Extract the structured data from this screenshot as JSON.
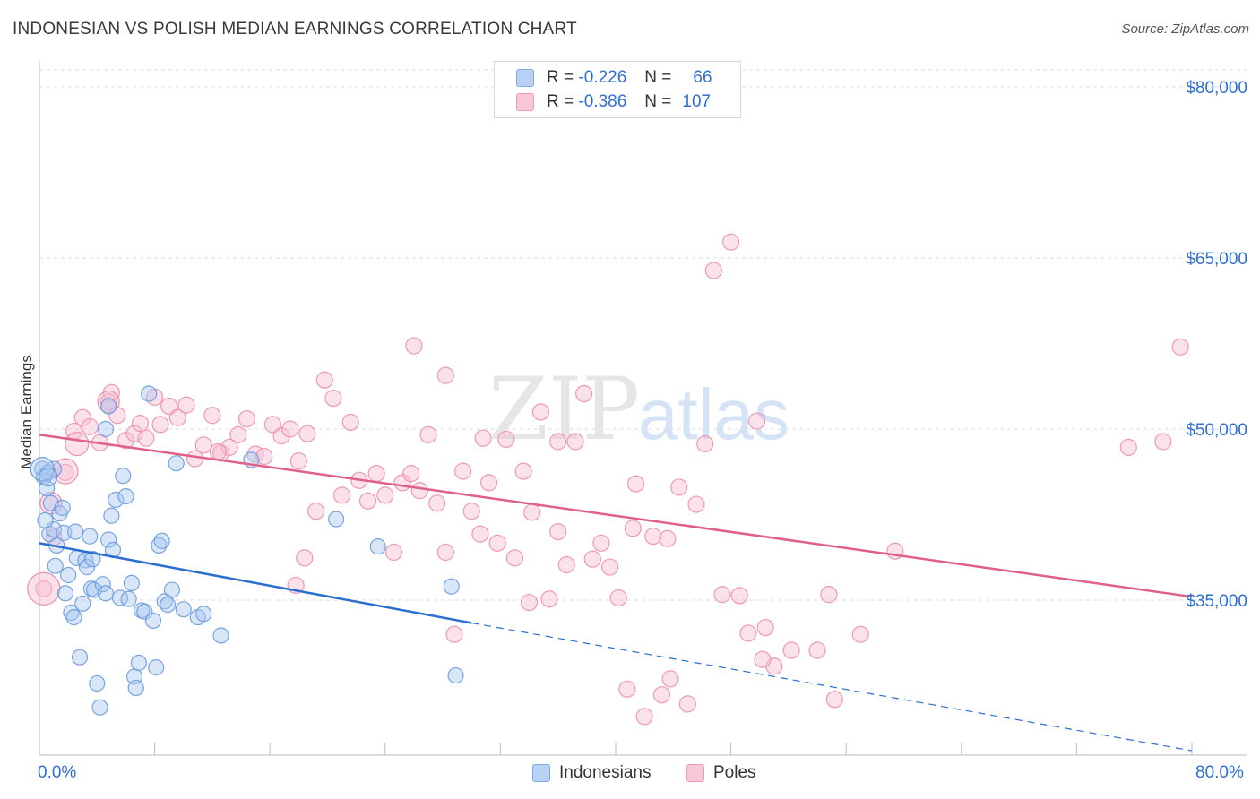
{
  "title": "INDONESIAN VS POLISH MEDIAN EARNINGS CORRELATION CHART",
  "source": "Source: ZipAtlas.com",
  "watermark": {
    "zip": "ZIP",
    "atlas": "atlas"
  },
  "legend": {
    "rows": [
      {
        "r_label": "R =",
        "r_value": "-0.226",
        "n_label": "N =",
        "n_value": "66"
      },
      {
        "r_label": "R =",
        "r_value": "-0.386",
        "n_label": "N =",
        "n_value": "107"
      }
    ]
  },
  "colors": {
    "blue": "#7aaae8",
    "blue_line": "#2a6fd0",
    "pink": "#f09ab8",
    "pink_line": "#e0608a",
    "axis_text": "#2f6fd0",
    "grid": "#d9d9d9"
  },
  "chart_data": {
    "type": "scatter",
    "title": "INDONESIAN VS POLISH MEDIAN EARNINGS CORRELATION CHART",
    "ylabel": "Median Earnings",
    "xlabel": "",
    "xlim": [
      0,
      80
    ],
    "ylim": [
      20000,
      82000
    ],
    "x_tick_labels": {
      "left": "0.0%",
      "right": "80.0%"
    },
    "y_ticks": [
      {
        "value": 80000,
        "label": "$80,000"
      },
      {
        "value": 65000,
        "label": "$65,000"
      },
      {
        "value": 50000,
        "label": "$50,000"
      },
      {
        "value": 35000,
        "label": "$35,000"
      }
    ],
    "series": [
      {
        "name": "Indonesians",
        "color": "#7aaae8",
        "trend": {
          "x0": 0,
          "y0": 40000,
          "x1": 30,
          "y1": 33000,
          "dash_to_x": 80,
          "dash_to_y": 21800
        },
        "points": [
          [
            0.2,
            46500
          ],
          [
            0.3,
            45800
          ],
          [
            0.5,
            44800
          ],
          [
            0.6,
            46200
          ],
          [
            0.7,
            40800
          ],
          [
            0.8,
            43500
          ],
          [
            1.0,
            41200
          ],
          [
            1.1,
            38000
          ],
          [
            1.2,
            39800
          ],
          [
            1.4,
            42600
          ],
          [
            1.6,
            43100
          ],
          [
            1.7,
            40900
          ],
          [
            1.8,
            35600
          ],
          [
            2.0,
            37200
          ],
          [
            2.2,
            33900
          ],
          [
            2.4,
            33500
          ],
          [
            2.5,
            41000
          ],
          [
            2.6,
            38700
          ],
          [
            2.8,
            30000
          ],
          [
            3.0,
            34700
          ],
          [
            3.2,
            38500
          ],
          [
            3.3,
            37900
          ],
          [
            3.5,
            40600
          ],
          [
            3.6,
            36000
          ],
          [
            3.7,
            38600
          ],
          [
            3.8,
            35900
          ],
          [
            4.0,
            27700
          ],
          [
            4.2,
            25600
          ],
          [
            4.4,
            36400
          ],
          [
            4.6,
            35600
          ],
          [
            4.8,
            40300
          ],
          [
            5.0,
            42400
          ],
          [
            5.1,
            39400
          ],
          [
            5.3,
            43800
          ],
          [
            5.6,
            35200
          ],
          [
            5.8,
            45900
          ],
          [
            6.0,
            44100
          ],
          [
            6.2,
            35100
          ],
          [
            6.4,
            36500
          ],
          [
            6.6,
            28300
          ],
          [
            6.7,
            27300
          ],
          [
            6.9,
            29500
          ],
          [
            7.1,
            34100
          ],
          [
            7.3,
            34000
          ],
          [
            7.6,
            53100
          ],
          [
            7.9,
            33200
          ],
          [
            8.1,
            29100
          ],
          [
            8.3,
            39800
          ],
          [
            8.5,
            40200
          ],
          [
            8.7,
            34900
          ],
          [
            8.9,
            34600
          ],
          [
            9.2,
            35900
          ],
          [
            9.5,
            47000
          ],
          [
            10.0,
            34200
          ],
          [
            11.0,
            33500
          ],
          [
            11.4,
            33800
          ],
          [
            12.6,
            31900
          ],
          [
            14.7,
            47300
          ],
          [
            20.6,
            42100
          ],
          [
            23.5,
            39700
          ],
          [
            28.6,
            36200
          ],
          [
            28.9,
            28400
          ],
          [
            4.8,
            52000
          ],
          [
            4.6,
            50000
          ],
          [
            1.0,
            46500
          ],
          [
            0.4,
            42000
          ]
        ]
      },
      {
        "name": "Poles",
        "color": "#f09ab8",
        "trend": {
          "x0": 0,
          "y0": 49500,
          "x1": 80,
          "y1": 35300
        },
        "points": [
          [
            0.3,
            36000
          ],
          [
            1.0,
            40500
          ],
          [
            1.8,
            46200
          ],
          [
            2.4,
            49800
          ],
          [
            3.0,
            51000
          ],
          [
            3.5,
            50200
          ],
          [
            4.2,
            48800
          ],
          [
            4.8,
            52400
          ],
          [
            5.0,
            53200
          ],
          [
            5.4,
            51200
          ],
          [
            6.0,
            49000
          ],
          [
            6.6,
            49600
          ],
          [
            7.0,
            50500
          ],
          [
            7.4,
            49200
          ],
          [
            8.0,
            52800
          ],
          [
            8.4,
            50400
          ],
          [
            9.0,
            52000
          ],
          [
            9.6,
            51000
          ],
          [
            10.2,
            52100
          ],
          [
            10.8,
            47400
          ],
          [
            11.4,
            48600
          ],
          [
            12.0,
            51200
          ],
          [
            12.6,
            47900
          ],
          [
            13.2,
            48400
          ],
          [
            13.8,
            49500
          ],
          [
            14.4,
            50900
          ],
          [
            15.0,
            47800
          ],
          [
            15.6,
            47600
          ],
          [
            16.2,
            50400
          ],
          [
            16.8,
            49400
          ],
          [
            17.4,
            50000
          ],
          [
            18.0,
            47200
          ],
          [
            18.6,
            49600
          ],
          [
            19.2,
            42800
          ],
          [
            19.8,
            54300
          ],
          [
            20.4,
            52700
          ],
          [
            21.0,
            44200
          ],
          [
            21.6,
            50600
          ],
          [
            22.2,
            45500
          ],
          [
            22.8,
            43700
          ],
          [
            23.4,
            46100
          ],
          [
            24.0,
            44200
          ],
          [
            24.6,
            39200
          ],
          [
            25.2,
            45300
          ],
          [
            25.8,
            46100
          ],
          [
            26.4,
            44600
          ],
          [
            27.0,
            49500
          ],
          [
            27.6,
            43500
          ],
          [
            28.2,
            39200
          ],
          [
            28.8,
            32000
          ],
          [
            29.4,
            46300
          ],
          [
            30.0,
            42800
          ],
          [
            30.6,
            40800
          ],
          [
            31.2,
            45300
          ],
          [
            31.8,
            40000
          ],
          [
            32.4,
            49100
          ],
          [
            33.0,
            38700
          ],
          [
            33.6,
            46300
          ],
          [
            34.2,
            42700
          ],
          [
            34.8,
            51500
          ],
          [
            35.4,
            35100
          ],
          [
            36.0,
            41000
          ],
          [
            36.6,
            38100
          ],
          [
            37.2,
            48900
          ],
          [
            37.8,
            53100
          ],
          [
            38.4,
            38600
          ],
          [
            39.0,
            40000
          ],
          [
            39.6,
            37900
          ],
          [
            40.2,
            35200
          ],
          [
            40.8,
            27200
          ],
          [
            41.4,
            45200
          ],
          [
            42.0,
            24800
          ],
          [
            42.6,
            40600
          ],
          [
            43.2,
            26700
          ],
          [
            43.8,
            28100
          ],
          [
            44.4,
            44900
          ],
          [
            45.0,
            25900
          ],
          [
            45.6,
            43400
          ],
          [
            46.2,
            48700
          ],
          [
            46.8,
            63900
          ],
          [
            47.4,
            35500
          ],
          [
            48.0,
            66400
          ],
          [
            48.6,
            35400
          ],
          [
            49.2,
            32100
          ],
          [
            49.8,
            50700
          ],
          [
            50.4,
            32600
          ],
          [
            51.0,
            29200
          ],
          [
            52.2,
            30600
          ],
          [
            54.0,
            30600
          ],
          [
            55.2,
            26300
          ],
          [
            57.0,
            32000
          ],
          [
            59.4,
            39300
          ],
          [
            75.6,
            48400
          ],
          [
            78.0,
            48900
          ],
          [
            79.2,
            57200
          ],
          [
            17.8,
            36300
          ],
          [
            18.4,
            38700
          ],
          [
            26.0,
            57300
          ],
          [
            28.2,
            54700
          ],
          [
            30.8,
            49200
          ],
          [
            34.0,
            34800
          ],
          [
            36.0,
            48900
          ],
          [
            41.2,
            41300
          ],
          [
            50.2,
            29800
          ],
          [
            54.8,
            35500
          ],
          [
            43.6,
            40400
          ],
          [
            12.4,
            48000
          ]
        ]
      }
    ]
  },
  "bottom_legend": {
    "items": [
      "Indonesians",
      "Poles"
    ]
  }
}
